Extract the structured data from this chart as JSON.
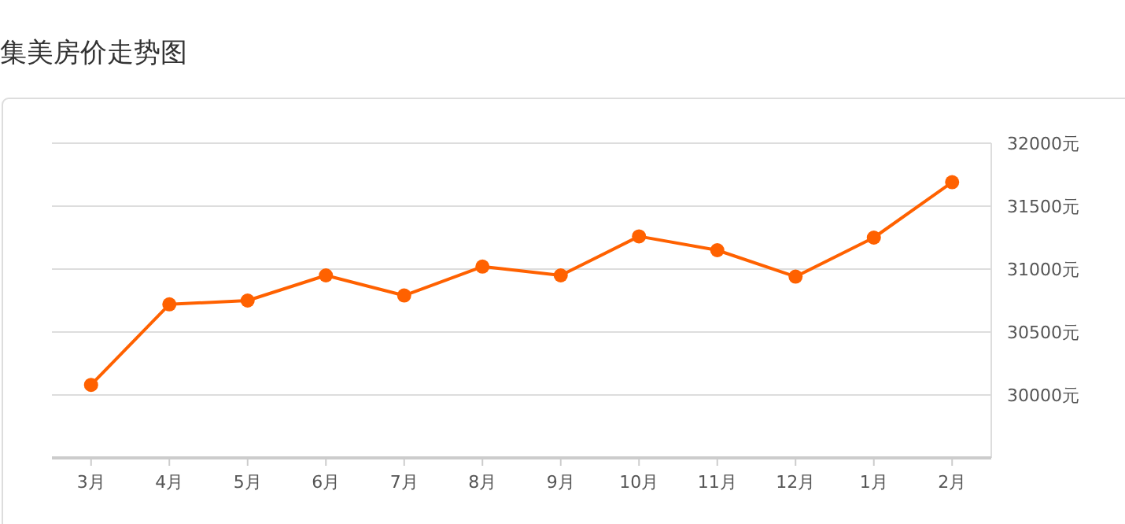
{
  "chart_data": {
    "type": "line",
    "title": "集美房价走势图",
    "categories": [
      "3月",
      "4月",
      "5月",
      "6月",
      "7月",
      "8月",
      "9月",
      "10月",
      "11月",
      "12月",
      "1月",
      "2月"
    ],
    "series": [
      {
        "color": "#ff6100",
        "values": [
          30080,
          30720,
          30750,
          30950,
          30790,
          31020,
          30950,
          31260,
          31150,
          30940,
          31250,
          31690
        ]
      }
    ],
    "ylim": [
      29500,
      32000
    ],
    "yticks": [
      {
        "value": 30000,
        "label": "30000元"
      },
      {
        "value": 30500,
        "label": "30500元"
      },
      {
        "value": 31000,
        "label": "31000元"
      },
      {
        "value": 31500,
        "label": "31500元"
      },
      {
        "value": 32000,
        "label": "32000元"
      }
    ],
    "grid": "y",
    "marker": "circle",
    "line_style": "solid"
  }
}
